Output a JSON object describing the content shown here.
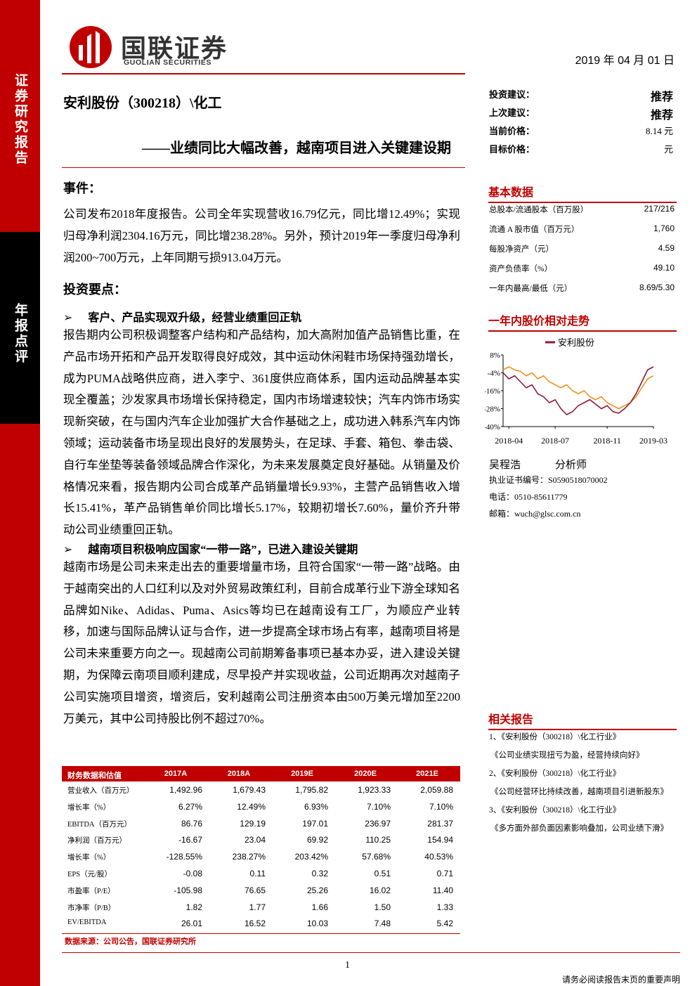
{
  "header": {
    "logo_cn": "国联证券",
    "logo_en": "GUOLIAN SECURITIES",
    "date": "2019 年 04 月 01 日"
  },
  "sidebar": {
    "top": "证券研究报告",
    "middle": "年报点评"
  },
  "title": "安利股份（300218）\\化工",
  "subtitle": "——业绩同比大幅改善，越南项目进入关键建设期",
  "rating": [
    [
      "投资建议：",
      "推荐"
    ],
    [
      "上次建议：",
      "推荐"
    ],
    [
      "当前价格：",
      "8.14 元"
    ],
    [
      "目标价格：",
      "元"
    ]
  ],
  "event": {
    "heading": "事件：",
    "text": "公司发布2018年度报告。公司全年实现营收16.79亿元，同比增12.49%；实现归母净利润2304.16万元，同比增238.28%。另外，预计2019年一季度归母净利润200~700万元，上年同期亏损913.04万元。"
  },
  "points": {
    "heading": "投资要点：",
    "items": [
      {
        "heading": "客户、产品实现双升级，经营业绩重回正轨",
        "text": "报告期内公司积极调整客户结构和产品结构，加大高附加值产品销售比重，在产品市场开拓和产品开发取得良好成效，其中运动休闲鞋市场保持强劲增长，成为PUMA战略供应商，进入李宁、361度供应商体系，国内运动品牌基本实现全覆盖；沙发家具市场增长保持稳定，国内市场增速较快；汽车内饰市场实现新突破，在与国内汽车企业加强扩大合作基础之上，成功进入韩系汽车内饰领域；运动装备市场呈现出良好的发展势头，在足球、手套、箱包、拳击袋、自行车坐垫等装备领域品牌合作深化，为未来发展奠定良好基础。从销量及价格情况来看，报告期内公司合成革产品销量增长9.93%，主营产品销售收入增长15.41%，革产品销售单价同比增长5.17%，较期初增长7.60%，量价齐升带动公司业绩重回正轨。"
      },
      {
        "heading": "越南项目积极响应国家“一带一路”，已进入建设关键期",
        "text": "越南市场是公司未来走出去的重要增量市场，且符合国家“一带一路”战略。由于越南突出的人口红利以及对外贸易政策红利，目前合成革行业下游全球知名品牌如Nike、Adidas、Puma、Asics等均已在越南设有工厂，为顺应产业转移，加速与国际品牌认证与合作，进一步提高全球市场占有率，越南项目将是公司未来重要方向之一。现越南公司前期筹备事项已基本办妥，进入建设关键期，为保障云南项目顺利建成，尽早投产并实现收益，公司近期再次对越南子公司实施项目增资，增资后，安利越南公司注册资本由500万美元增加至2200万美元，其中公司持股比例不超过70%。"
      }
    ]
  },
  "basic_data": {
    "heading": "基本数据",
    "rows": [
      [
        "总股本/流通股本（百万股）",
        "217/216"
      ],
      [
        "流通 A 股市值（百万元）",
        "1,760"
      ],
      [
        "每股净资产（元）",
        "4.59"
      ],
      [
        "资产负债率（%）",
        "49.10"
      ],
      [
        "一年内最高/最低（元）",
        "8.69/5.30"
      ]
    ]
  },
  "chart_heading": "一年内股价相对走势",
  "chart_data": {
    "type": "line",
    "series": [
      {
        "name": "安利股份",
        "color": "#8b1a3a",
        "values": [
          -4,
          -8,
          -6,
          -10,
          -14,
          -12,
          -18,
          -20,
          -24,
          -22,
          -28,
          -32,
          -30,
          -26,
          -24,
          -22,
          -25,
          -28,
          -26,
          -30,
          -31,
          -28,
          -24,
          -18,
          -10,
          -2,
          0
        ]
      },
      {
        "color": "#f0901e",
        "values": [
          -2,
          0,
          -2,
          -3,
          -6,
          -4,
          -8,
          -6,
          -10,
          -12,
          -14,
          -12,
          -16,
          -18,
          -16,
          -20,
          -22,
          -20,
          -24,
          -26,
          -28,
          -26,
          -24,
          -20,
          -14,
          -8,
          -6
        ]
      }
    ],
    "xlim": [
      0,
      26
    ],
    "xticks": [
      {
        "value": 1,
        "label": "2018-04"
      },
      {
        "value": 9,
        "label": "2018-07"
      },
      {
        "value": 18,
        "label": "2018-11"
      },
      {
        "value": 26,
        "label": "2019-03"
      }
    ],
    "ylim": [
      -40,
      8
    ],
    "yticks": [
      {
        "value": 8,
        "label": "8%"
      },
      {
        "value": -4,
        "label": "-4%"
      },
      {
        "value": -16,
        "label": "-16%"
      },
      {
        "value": -28,
        "label": "-28%"
      },
      {
        "value": -40,
        "label": "-40%"
      }
    ],
    "legend": "top"
  },
  "analyst": {
    "name": "吴程浩",
    "role": "分析师",
    "license": "执业证书编号：S0590518070002",
    "phone": "电话：0510-85611779",
    "email": "邮箱：wuch@glsc.com.cn"
  },
  "related": {
    "heading": "相关报告",
    "items": [
      "1、《安利股份（300218）\\化工行业》",
      "《公司业绩实现扭亏为盈，经营持续向好》",
      "2、《安利股份（300218）\\化工行业》",
      "《公司经营环比持续改善，越南项目引进新股东》",
      "3、《安利股份（300218）\\化工行业》",
      "《多方面外部负面因素影响叠加，公司业绩下滑》"
    ]
  },
  "table": {
    "header": [
      "财务数据和估值",
      "2017A",
      "2018A",
      "2019E",
      "2020E",
      "2021E"
    ],
    "rows": [
      [
        "营业收入（百万元）",
        "1,492.96",
        "1,679.43",
        "1,795.82",
        "1,923.33",
        "2,059.88"
      ],
      [
        "增长率（%）",
        "6.27%",
        "12.49%",
        "6.93%",
        "7.10%",
        "7.10%"
      ],
      [
        "EBITDA（百万元）",
        "86.76",
        "129.19",
        "197.01",
        "236.97",
        "281.37"
      ],
      [
        "净利润（百万元）",
        "-16.67",
        "23.04",
        "69.92",
        "110.25",
        "154.94"
      ],
      [
        "增长率（%）",
        "-128.55%",
        "238.27%",
        "203.42%",
        "57.68%",
        "40.53%"
      ],
      [
        "EPS（元/股）",
        "-0.08",
        "0.11",
        "0.32",
        "0.51",
        "0.71"
      ],
      [
        "市盈率（P/E）",
        "-105.98",
        "76.65",
        "25.26",
        "16.02",
        "11.40"
      ],
      [
        "市净率（P/B）",
        "1.82",
        "1.77",
        "1.66",
        "1.50",
        "1.33"
      ],
      [
        "EV/EBITDA",
        "26.01",
        "16.52",
        "10.03",
        "7.48",
        "5.42"
      ]
    ]
  },
  "source": "数据来源：公司公告，国联证券研究所",
  "footer": {
    "page": "1",
    "disclaimer": "请务必阅读报告末页的重要声明"
  }
}
